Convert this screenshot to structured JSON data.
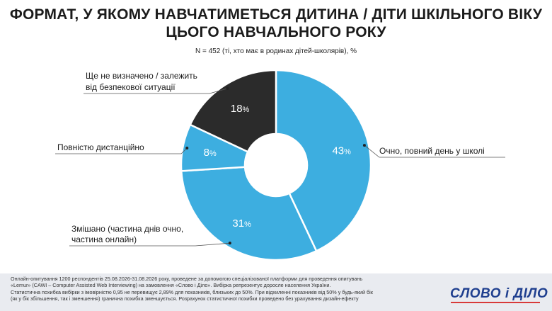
{
  "header": {
    "title_line1": "ФОРМАТ, У ЯКОМУ НАВЧАТИМЕТЬСЯ ДИТИНА / ДІТИ ШКІЛЬНОГО ВІКУ",
    "title_line2": "ЦЬОГО НАВЧАЛЬНОГО РОКУ",
    "subtitle": "N = 452 (ті, хто має в родинах дітей-школярів), %"
  },
  "chart_data": {
    "type": "pie",
    "donut": true,
    "unit": "%",
    "slices": [
      {
        "label": "Очно, повний день у школі",
        "value": 43,
        "color": "#3daee0"
      },
      {
        "label": "Змішано (частина днів очно, частина онлайн)",
        "value": 31,
        "color": "#3daee0"
      },
      {
        "label": "Повністю дистанційно",
        "value": 8,
        "color": "#3daee0"
      },
      {
        "label": "Ще не визначено / залежить від безпекової ситуації",
        "value": 18,
        "color": "#2b2b2b"
      }
    ]
  },
  "labels": {
    "full_time": "Очно, повний день у школі",
    "mixed_line1": "Змішано (частина днів очно,",
    "mixed_line2": "частина онлайн)",
    "remote": "Повністю дистанційно",
    "undecided_line1": "Ще не визначено / залежить",
    "undecided_line2": "від безпекової ситуації"
  },
  "footer": {
    "line1": "Онлайн-опитування 1200 респондентів 25.08.2026-31.08.2026 року, проведене за допомогою спеціалізованої платформи для проведення опитувань",
    "line2": "«Lemur» (CAWI – Computer Assisted Web Interviewing) на замовлення «Слово і Діло». Вибірка репрезентує доросле населення України.",
    "line3": "Статистична похибка вибірки з імовірністю 0,95 не перевищує 2,89% для показників, близьких до 50%. При відхиленні показників від 50% у будь-який бік",
    "line4": "(як у бік збільшення, так і зменшення) гранична похибка зменшується. Розрахунок статистичної похибки проведено без урахування дизайн-ефекту",
    "logo": "СЛОВО і ДІЛО"
  },
  "colors": {
    "segment_blue": "#3daee0",
    "segment_dark": "#2b2b2b",
    "logo_blue": "#1f3f8f",
    "logo_red": "#d83a3a"
  }
}
